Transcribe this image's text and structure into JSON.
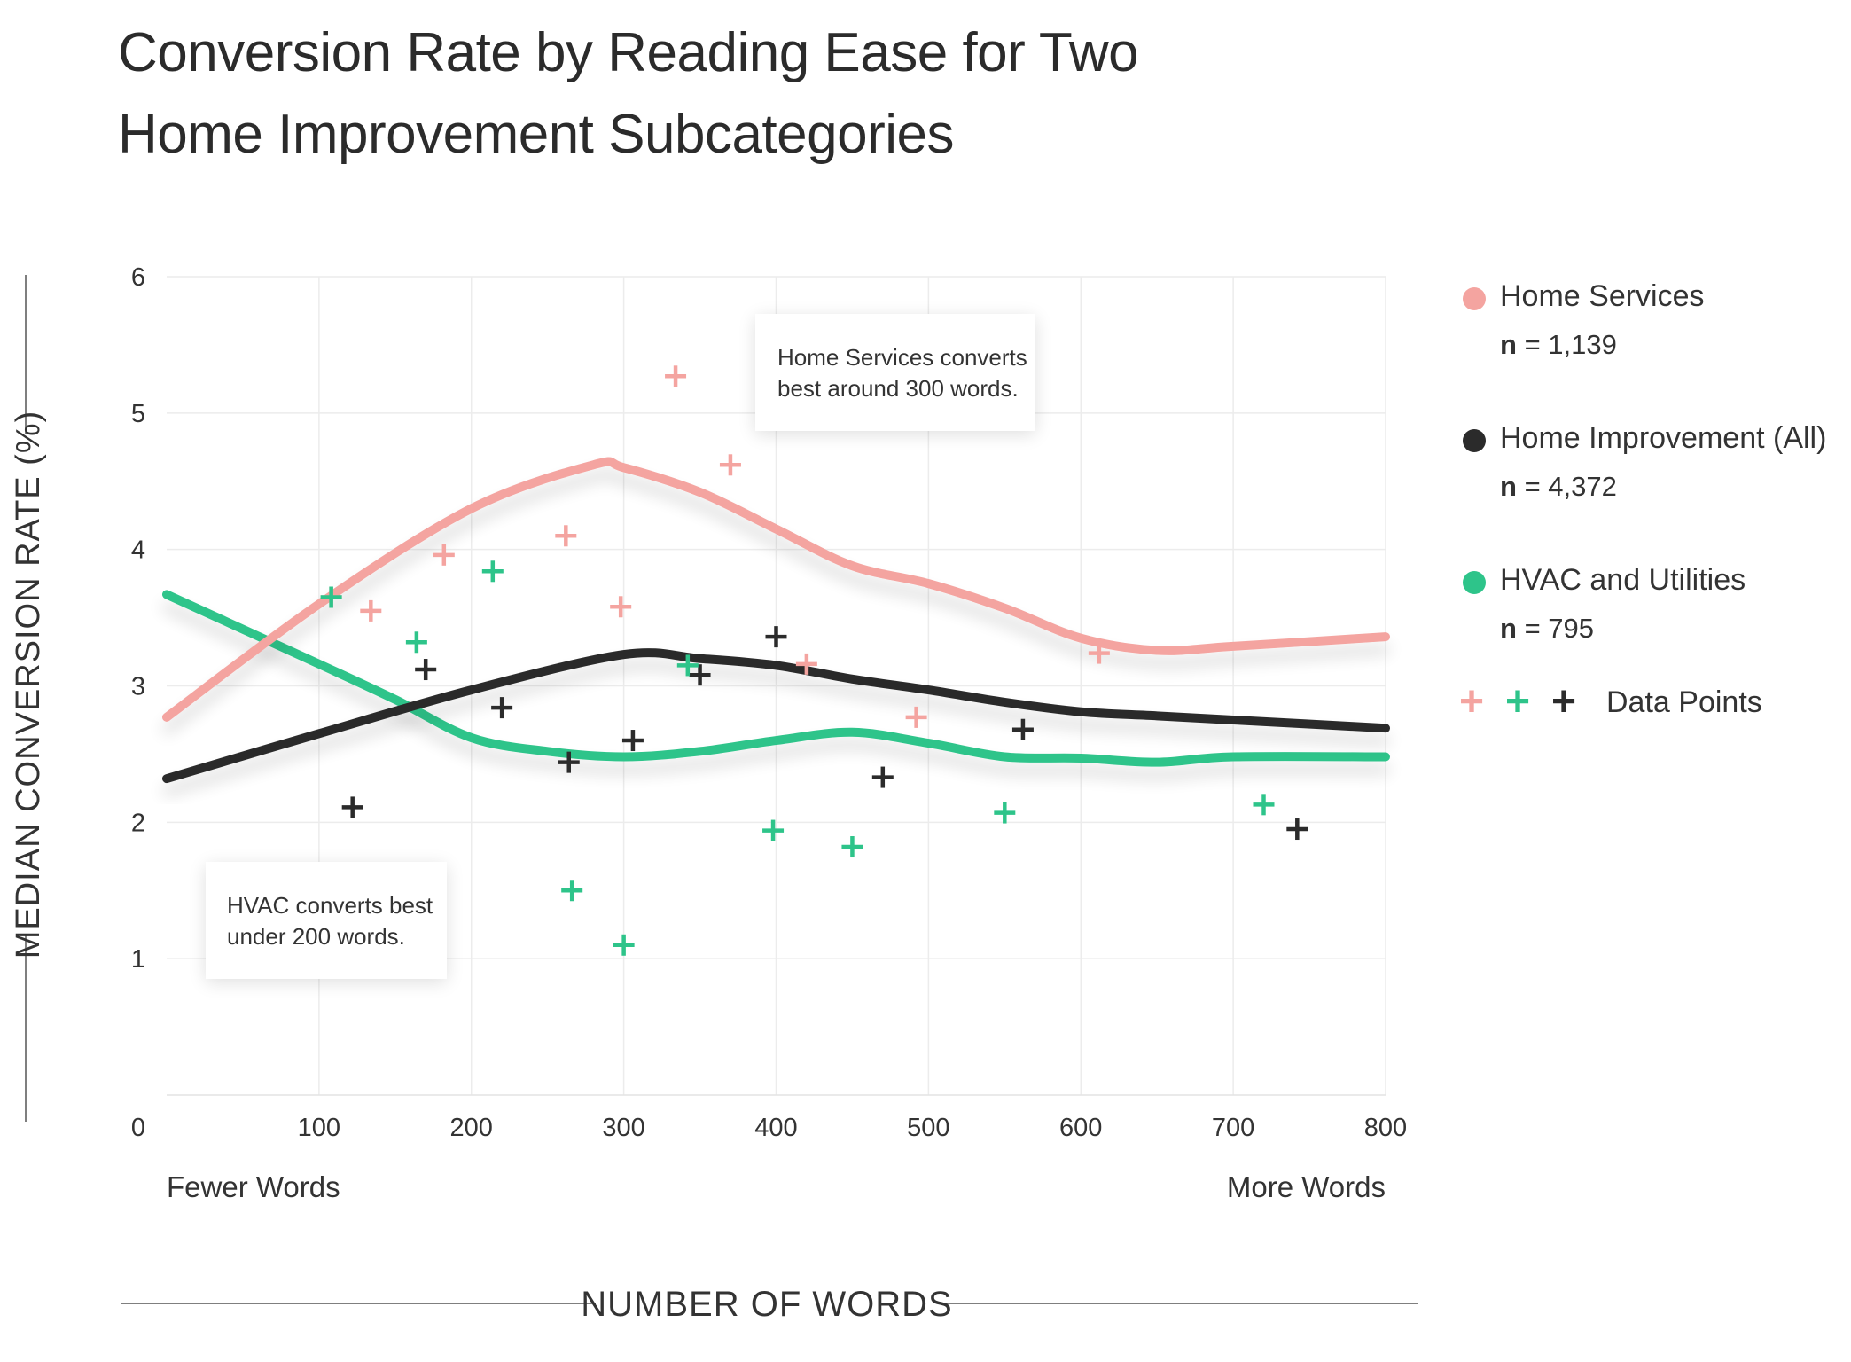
{
  "chart_data": {
    "type": "line",
    "title_line1": "Conversion Rate by Reading Ease for Two",
    "title_line2": "Home Improvement Subcategories",
    "xlabel": "NUMBER OF WORDS",
    "ylabel": "MEDIAN CONVERSION RATE (%)",
    "xlim": [
      0,
      800
    ],
    "ylim": [
      0,
      6
    ],
    "x_ticks": [
      "0",
      "100",
      "200",
      "300",
      "400",
      "500",
      "600",
      "700",
      "800"
    ],
    "y_ticks": [
      "1",
      "2",
      "3",
      "4",
      "5",
      "6"
    ],
    "x_hint_left": "Fewer Words",
    "x_hint_right": "More Words",
    "series": [
      {
        "name": "Home Services",
        "n_label": "n",
        "n_value": "= 1,139",
        "color": "#f4a4a0",
        "line": [
          [
            0,
            2.77
          ],
          [
            100,
            3.6
          ],
          [
            200,
            4.3
          ],
          [
            280,
            4.62
          ],
          [
            300,
            4.6
          ],
          [
            350,
            4.42
          ],
          [
            400,
            4.15
          ],
          [
            450,
            3.88
          ],
          [
            500,
            3.75
          ],
          [
            550,
            3.57
          ],
          [
            600,
            3.35
          ],
          [
            650,
            3.26
          ],
          [
            700,
            3.29
          ],
          [
            800,
            3.36
          ]
        ],
        "points": [
          [
            108,
            3.65
          ],
          [
            134,
            3.55
          ],
          [
            182,
            3.96
          ],
          [
            262,
            4.1
          ],
          [
            298,
            3.58
          ],
          [
            334,
            5.27
          ],
          [
            370,
            4.62
          ],
          [
            420,
            3.16
          ],
          [
            492,
            2.77
          ],
          [
            612,
            3.24
          ]
        ]
      },
      {
        "name": "Home Improvement (All)",
        "n_label": "n",
        "n_value": "= 4,372",
        "color": "#2b2b2b",
        "line": [
          [
            0,
            2.32
          ],
          [
            100,
            2.65
          ],
          [
            200,
            2.97
          ],
          [
            300,
            3.23
          ],
          [
            350,
            3.2
          ],
          [
            400,
            3.15
          ],
          [
            450,
            3.05
          ],
          [
            500,
            2.97
          ],
          [
            550,
            2.88
          ],
          [
            600,
            2.81
          ],
          [
            650,
            2.78
          ],
          [
            700,
            2.75
          ],
          [
            800,
            2.69
          ]
        ],
        "points": [
          [
            122,
            2.11
          ],
          [
            170,
            3.12
          ],
          [
            220,
            2.84
          ],
          [
            264,
            2.44
          ],
          [
            306,
            2.6
          ],
          [
            350,
            3.08
          ],
          [
            400,
            3.36
          ],
          [
            470,
            2.33
          ],
          [
            562,
            2.68
          ],
          [
            742,
            1.95
          ]
        ]
      },
      {
        "name": "HVAC and Utilities",
        "n_label": "n",
        "n_value": "= 795",
        "color": "#2ec48a",
        "line": [
          [
            0,
            3.67
          ],
          [
            100,
            3.16
          ],
          [
            150,
            2.9
          ],
          [
            200,
            2.62
          ],
          [
            250,
            2.52
          ],
          [
            300,
            2.48
          ],
          [
            350,
            2.52
          ],
          [
            400,
            2.6
          ],
          [
            450,
            2.66
          ],
          [
            500,
            2.58
          ],
          [
            550,
            2.48
          ],
          [
            600,
            2.47
          ],
          [
            650,
            2.44
          ],
          [
            700,
            2.48
          ],
          [
            800,
            2.48
          ]
        ],
        "points": [
          [
            108,
            3.65
          ],
          [
            164,
            3.32
          ],
          [
            214,
            3.84
          ],
          [
            266,
            1.5
          ],
          [
            300,
            1.1
          ],
          [
            342,
            3.15
          ],
          [
            398,
            1.94
          ],
          [
            450,
            1.82
          ],
          [
            550,
            2.07
          ],
          [
            720,
            2.13
          ]
        ]
      }
    ],
    "annotations": [
      {
        "text_line1": "Home Services converts",
        "text_line2": "best around 300 words."
      },
      {
        "text_line1": "HVAC converts best",
        "text_line2": "under 200 words."
      }
    ],
    "legend_points_label": "Data Points"
  }
}
